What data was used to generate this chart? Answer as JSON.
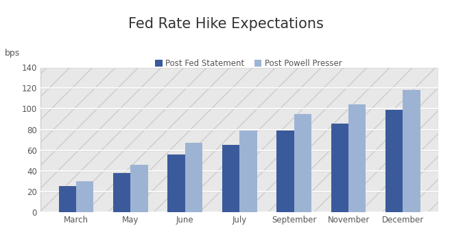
{
  "title": "Fed Rate Hike Expectations",
  "ylabel": "bps",
  "categories": [
    "March",
    "May",
    "June",
    "July",
    "September",
    "November",
    "December"
  ],
  "series": [
    {
      "label": "Post Fed Statement",
      "values": [
        25,
        38,
        56,
        65,
        79,
        86,
        99
      ],
      "color": "#3A5A9B"
    },
    {
      "label": "Post Powell Presser",
      "values": [
        30,
        46,
        67,
        79,
        95,
        104,
        118
      ],
      "color": "#9DB3D4"
    }
  ],
  "ylim": [
    0,
    140
  ],
  "yticks": [
    0,
    20,
    40,
    60,
    80,
    100,
    120,
    140
  ],
  "background_color": "#FFFFFF",
  "plot_bg_color": "#E8E8E8",
  "grid_color": "#FFFFFF",
  "title_fontsize": 15,
  "axis_label_fontsize": 9,
  "tick_fontsize": 8.5,
  "bar_width": 0.32,
  "legend_fontsize": 8.5
}
